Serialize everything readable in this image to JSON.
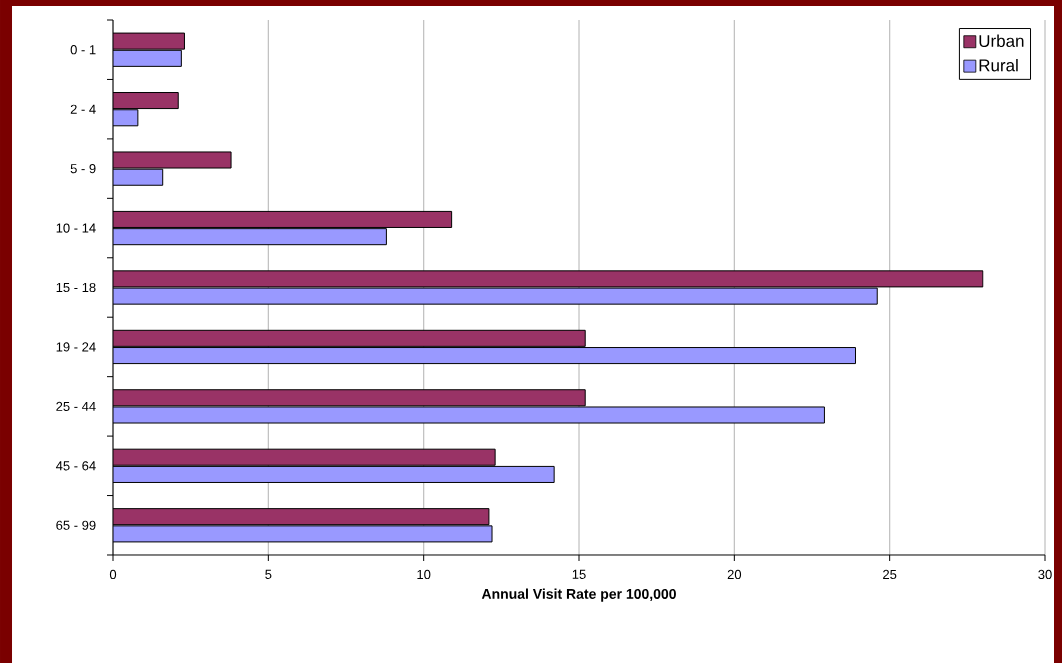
{
  "chart_data": {
    "type": "bar",
    "orientation": "horizontal",
    "xlabel": "Annual Visit Rate per 100,000",
    "categories": [
      "0 - 1",
      "2 - 4",
      "5 - 9",
      "10 - 14",
      "15 - 18",
      "19 - 24",
      "25 - 44",
      "45 - 64",
      "65 - 99"
    ],
    "series": [
      {
        "name": "Urban",
        "color": "#993366",
        "values": [
          2.3,
          2.1,
          3.8,
          10.9,
          28.0,
          15.2,
          15.2,
          12.3,
          12.1
        ]
      },
      {
        "name": "Rural",
        "color": "#9999ff",
        "values": [
          2.2,
          0.8,
          1.6,
          8.8,
          24.6,
          23.9,
          22.9,
          14.2,
          12.2
        ]
      }
    ],
    "xlim": [
      0,
      30
    ],
    "xticks": [
      0,
      5,
      10,
      15,
      20,
      25,
      30
    ],
    "grid": "x",
    "legend": "top right"
  }
}
